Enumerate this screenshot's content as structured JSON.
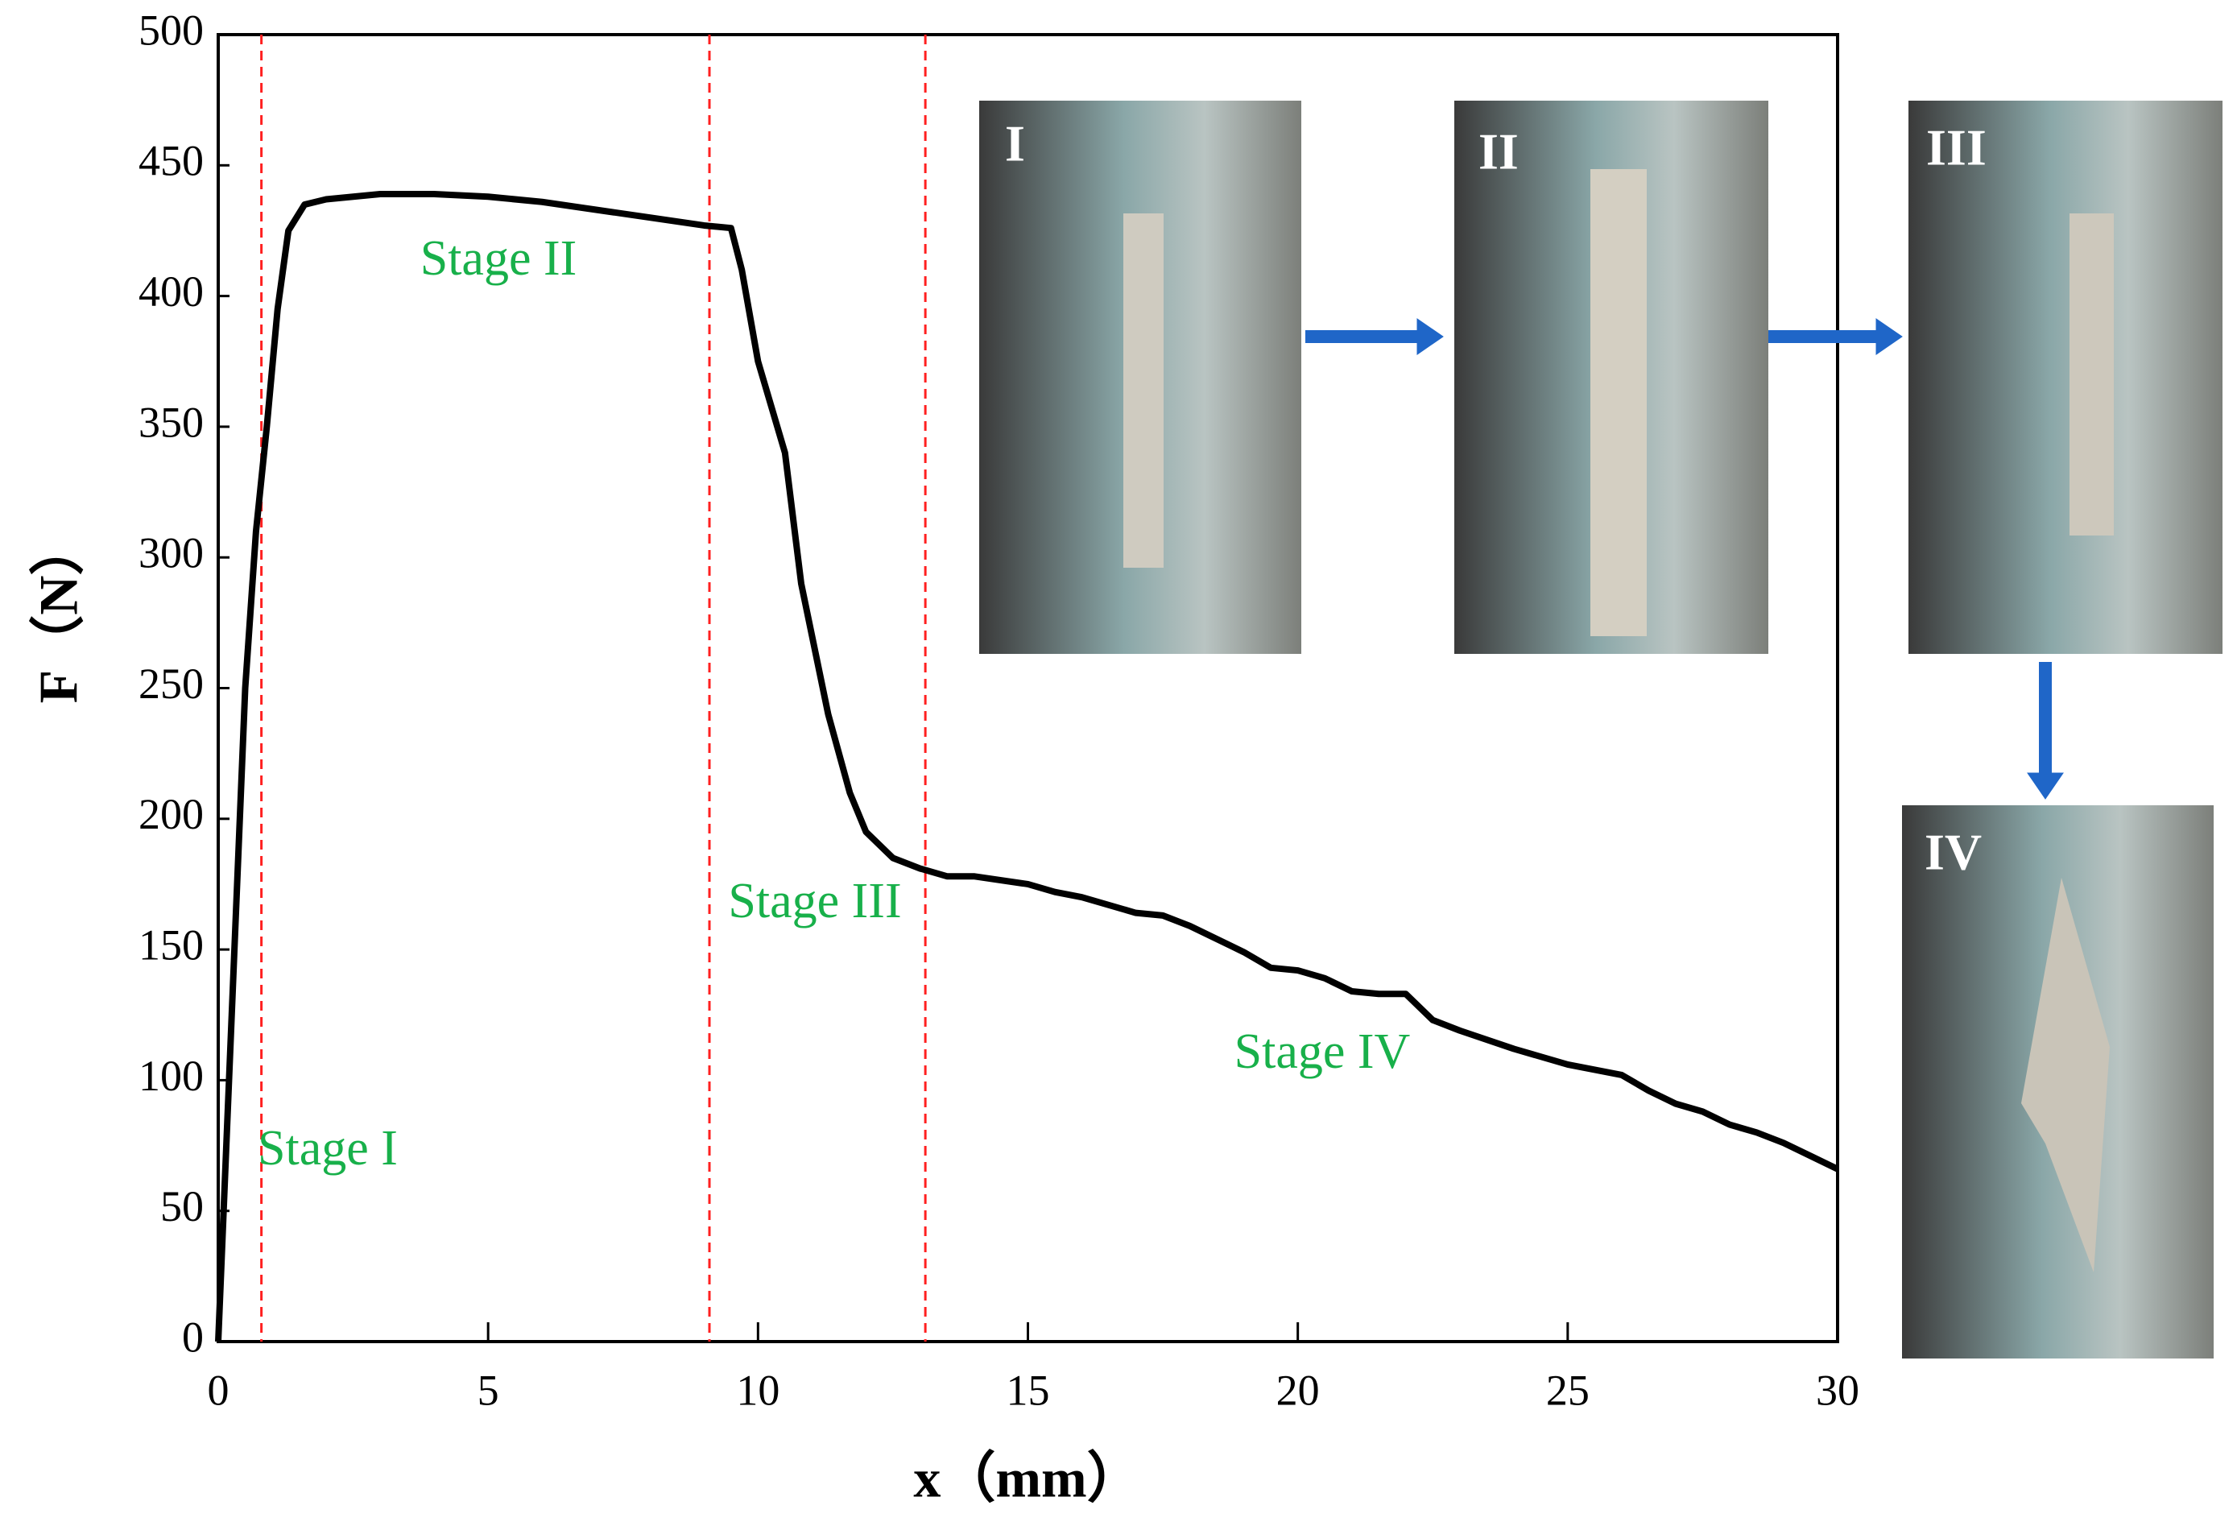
{
  "chart_data": {
    "type": "line",
    "x_label": "x（mm）",
    "y_label": "F（N）",
    "x": [
      0,
      0.3,
      0.5,
      0.7,
      0.9,
      1.1,
      1.3,
      1.6,
      2,
      3,
      4,
      5,
      6,
      7,
      8,
      9,
      9.5,
      9.7,
      10,
      10.5,
      10.8,
      11,
      11.3,
      11.7,
      12,
      12.5,
      13,
      13.5,
      14,
      15,
      15.5,
      16,
      17,
      17.5,
      18,
      19,
      19.5,
      20,
      20.5,
      21,
      21.5,
      22,
      22.5,
      23,
      24,
      25,
      26,
      26.5,
      27,
      27.5,
      28,
      28.5,
      29,
      29.5,
      30
    ],
    "values": [
      0,
      150,
      250,
      310,
      350,
      395,
      425,
      435,
      437,
      439,
      439,
      438,
      436,
      433,
      430,
      427,
      426,
      410,
      375,
      340,
      290,
      270,
      240,
      210,
      195,
      185,
      181,
      178,
      178,
      175,
      172,
      170,
      164,
      163,
      159,
      149,
      143,
      142,
      139,
      134,
      133,
      133,
      123,
      119,
      112,
      106,
      102,
      96,
      91,
      88,
      83,
      80,
      76,
      71,
      66
    ],
    "color": "#000000",
    "xlim": [
      0,
      30
    ],
    "xticks": [
      0,
      5,
      10,
      15,
      20,
      25,
      30
    ],
    "ylim": [
      0,
      500
    ],
    "yticks": [
      0,
      50,
      100,
      150,
      200,
      250,
      300,
      350,
      400,
      450,
      500
    ],
    "stage_lines": [
      0.8,
      9.1,
      13.1
    ],
    "stage_line_color": "#ff2020",
    "annotations": [
      "Stage I",
      "Stage II",
      "Stage III",
      "Stage IV"
    ],
    "annotation_color": "#18b04a",
    "photo_labels": [
      "I",
      "II",
      "III",
      "IV"
    ]
  }
}
